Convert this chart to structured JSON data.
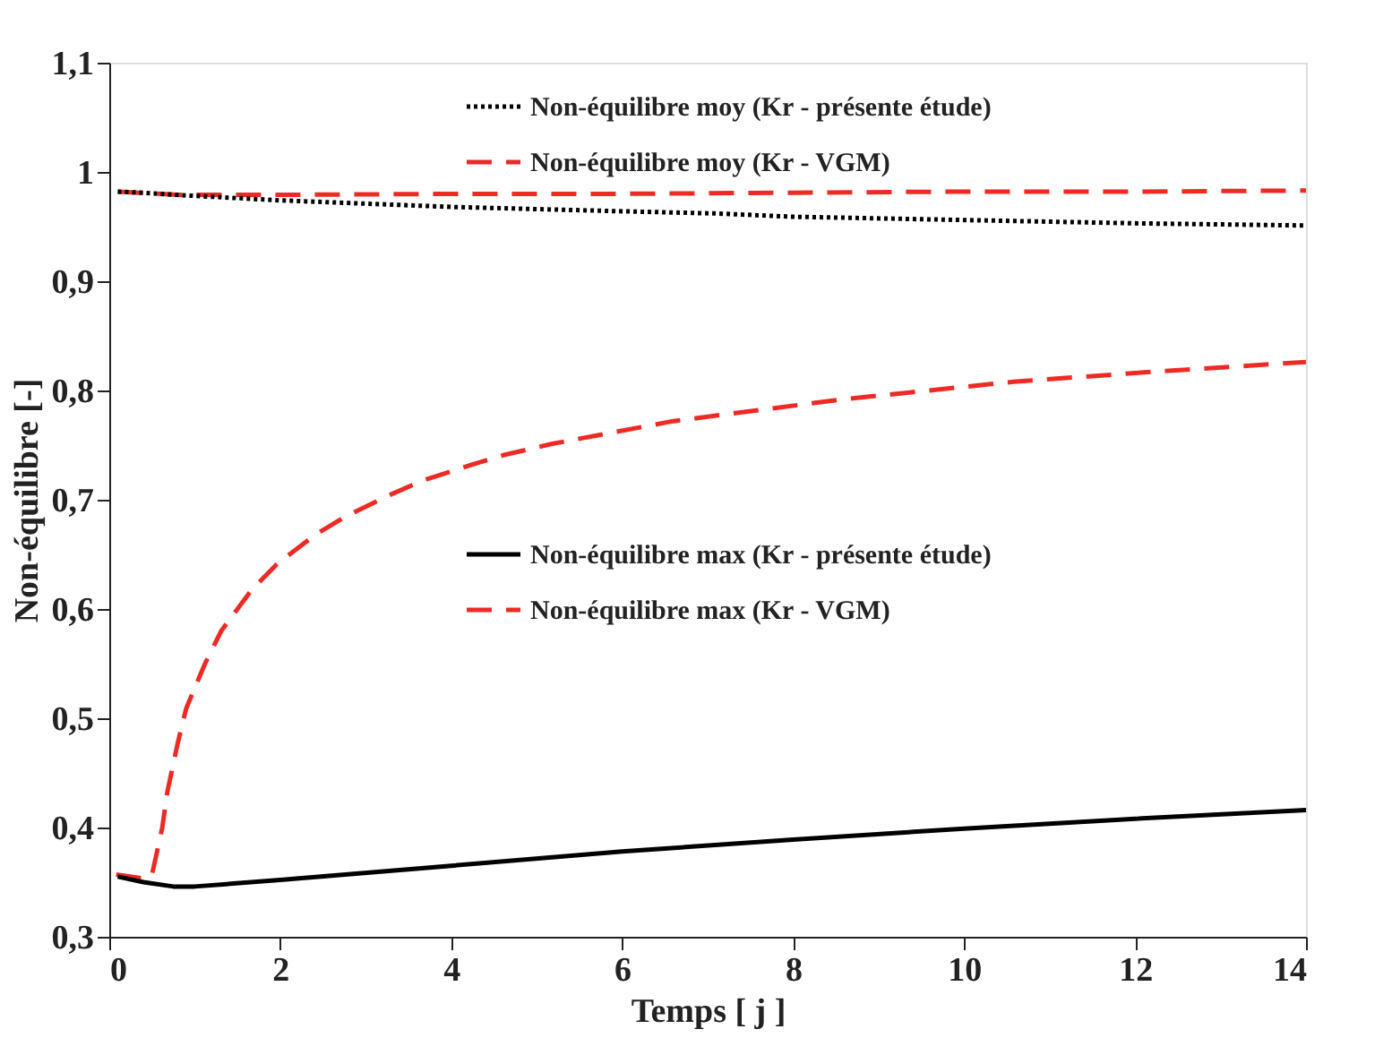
{
  "chart_data": {
    "type": "line",
    "xlabel": "Temps [ j ]",
    "ylabel": "Non-équilibre [-]",
    "xlim": [
      0,
      14
    ],
    "xticks": [
      0,
      2,
      4,
      6,
      8,
      10,
      12,
      14
    ],
    "ylim": [
      0.3,
      1.1
    ],
    "yticks": [
      {
        "value": 0.3,
        "label": "0,3"
      },
      {
        "value": 0.4,
        "label": "0,4"
      },
      {
        "value": 0.5,
        "label": "0,5"
      },
      {
        "value": 0.6,
        "label": "0,6"
      },
      {
        "value": 0.7,
        "label": "0,7"
      },
      {
        "value": 0.8,
        "label": "0,8"
      },
      {
        "value": 0.9,
        "label": "0,9"
      },
      {
        "value": 1,
        "label": "1"
      },
      {
        "value": 1.1,
        "label": "1,1"
      }
    ],
    "grid": false,
    "legend": "top right",
    "marker": "none",
    "series": [
      {
        "name": "Non-équilibre moy (Kr - présente étude)",
        "color": "#000000",
        "line_style": "dotted",
        "x": [
          0.1,
          0.4,
          0.78,
          2,
          4,
          6,
          7.1,
          8,
          10,
          12,
          14
        ],
        "values": [
          0.982,
          0.981,
          0.979,
          0.974,
          0.968,
          0.964,
          0.962,
          0.959,
          0.956,
          0.953,
          0.951
        ]
      },
      {
        "name": "Non-équilibre moy (Kr - VGM)",
        "color": "#ee2a24",
        "line_style": "dashed",
        "x": [
          0.1,
          0.8,
          2,
          4,
          6,
          8,
          10,
          12,
          14
        ],
        "values": [
          0.982,
          0.979,
          0.979,
          0.98,
          0.98,
          0.981,
          0.982,
          0.982,
          0.983
        ]
      },
      {
        "name": "Non-équilibre max (Kr - présente étude)",
        "color": "#000000",
        "line_style": "solid",
        "x": [
          0.1,
          0.4,
          0.75,
          1,
          2,
          4,
          6,
          8,
          10,
          12,
          14
        ],
        "values": [
          0.355,
          0.35,
          0.346,
          0.346,
          0.352,
          0.365,
          0.378,
          0.389,
          0.399,
          0.408,
          0.416
        ]
      },
      {
        "name": "Non-équilibre max (Kr - VGM)",
        "color": "#ee2a24",
        "line_style": "dashed",
        "x": [
          0.08,
          0.43,
          0.5,
          0.62,
          0.68,
          0.8,
          0.9,
          1.12,
          1.31,
          1.66,
          1.96,
          2.41,
          2.77,
          3.3,
          3.68,
          4.24,
          4.62,
          5.17,
          6.6,
          8.59,
          10.58,
          12,
          13.58,
          14
        ],
        "values": [
          0.357,
          0.353,
          0.357,
          0.4,
          0.433,
          0.477,
          0.509,
          0.55,
          0.58,
          0.617,
          0.641,
          0.668,
          0.685,
          0.705,
          0.718,
          0.732,
          0.741,
          0.751,
          0.772,
          0.792,
          0.808,
          0.816,
          0.824,
          0.826
        ]
      }
    ]
  }
}
